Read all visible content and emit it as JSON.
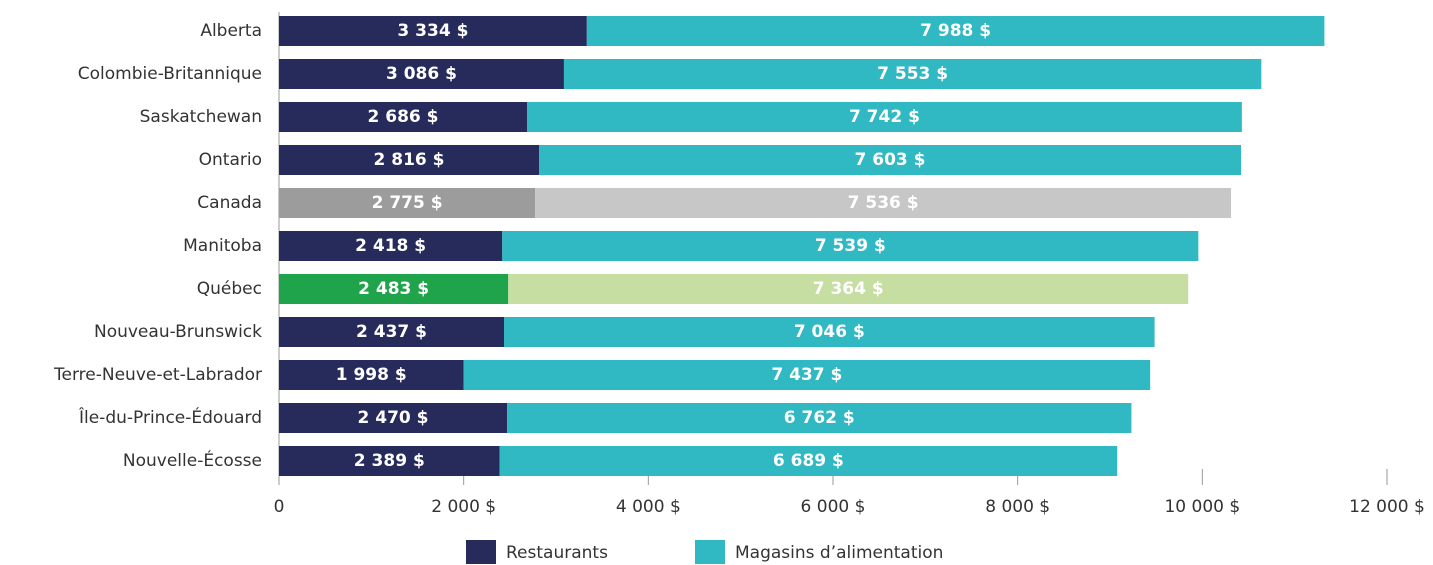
{
  "chart_data": {
    "type": "stacked_barh",
    "categories": [
      "Alberta",
      "Colombie-Britannique",
      "Saskatchewan",
      "Ontario",
      "Canada",
      "Manitoba",
      "Québec",
      "Nouveau-Brunswick",
      "Terre-Neuve-et-Labrador",
      "Île-du-Prince-Édouard",
      "Nouvelle-Écosse"
    ],
    "series": [
      {
        "name": "Restaurants",
        "color": "#262b5b",
        "colors": [
          "#262b5b",
          "#262b5b",
          "#262b5b",
          "#262b5b",
          "#9c9c9c",
          "#262b5b",
          "#20a44b",
          "#262b5b",
          "#262b5b",
          "#262b5b",
          "#262b5b"
        ],
        "values": [
          3334,
          3086,
          2686,
          2816,
          2775,
          2418,
          2483,
          2437,
          1998,
          2470,
          2389
        ],
        "value_labels": [
          "3 334 $",
          "3 086 $",
          "2 686 $",
          "2 816 $",
          "2 775 $",
          "2 418 $",
          "2 483 $",
          "2 437 $",
          "1 998 $",
          "2 470 $",
          "2 389 $"
        ]
      },
      {
        "name": "Magasins d’alimentation",
        "color": "#30b8c3",
        "colors": [
          "#30b8c3",
          "#30b8c3",
          "#30b8c3",
          "#30b8c3",
          "#c7c7c7",
          "#30b8c3",
          "#c6dea1",
          "#30b8c3",
          "#30b8c3",
          "#30b8c3",
          "#30b8c3"
        ],
        "values": [
          7988,
          7553,
          7742,
          7603,
          7536,
          7539,
          7364,
          7046,
          7437,
          6762,
          6689
        ],
        "value_labels": [
          "7 988 $",
          "7 553 $",
          "7 742 $",
          "7 603 $",
          "7 536 $",
          "7 539 $",
          "7 364 $",
          "7 046 $",
          "7 437 $",
          "6 762 $",
          "6 689 $"
        ]
      }
    ],
    "xlim": [
      0,
      12000
    ],
    "xticks": [
      0,
      {
        "value": 2000,
        "label": "2 000 $"
      },
      {
        "value": 4000,
        "label": "4 000 $"
      },
      {
        "value": 6000,
        "label": "6 000 $"
      },
      {
        "value": 8000,
        "label": "8 000 $"
      },
      {
        "value": 10000,
        "label": "10 000 $"
      },
      {
        "value": 12000,
        "label": "12 000 $"
      }
    ],
    "legend": "bottom"
  }
}
